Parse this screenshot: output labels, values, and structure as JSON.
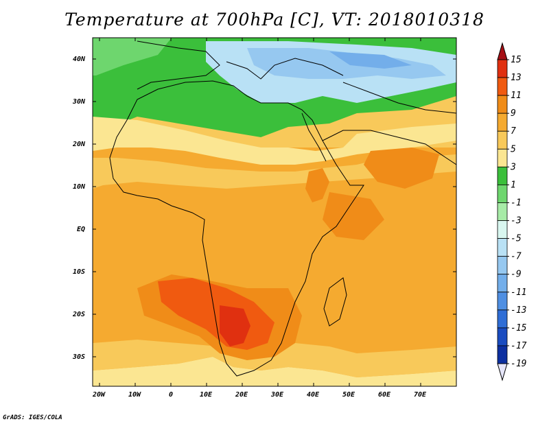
{
  "title": "Temperature at 700hPa [C], VT: 2018010318",
  "credit": "GrADS: IGES/COLA",
  "lat_labels": [
    "40N",
    "30N",
    "20N",
    "10N",
    "EQ",
    "10S",
    "20S",
    "30S"
  ],
  "lon_labels": [
    "20W",
    "10W",
    "0",
    "10E",
    "20E",
    "30E",
    "40E",
    "50E",
    "60E",
    "70E"
  ],
  "colorbar": {
    "levels": [
      "15",
      "13",
      "11",
      "9",
      "7",
      "5",
      "3",
      "1",
      "-1",
      "-3",
      "-5",
      "-7",
      "-9",
      "-11",
      "-13",
      "-15",
      "-17",
      "-19"
    ],
    "colors": [
      "#a50f15",
      "#e03010",
      "#f05a10",
      "#f08c18",
      "#f5aa30",
      "#f8c95a",
      "#fbe692",
      "#3bbf3b",
      "#6ed66e",
      "#a7eba7",
      "#d9f7f0",
      "#b9e1f5",
      "#96c8f0",
      "#73aeea",
      "#4f8fe2",
      "#2f6ed6",
      "#1a4cc0",
      "#0c2fa0",
      "#0a1878"
    ]
  },
  "regions": [
    {
      "name": "mediterranean-cold",
      "color": "#96c8f0"
    },
    {
      "name": "north-africa-green",
      "color": "#3bbf3b"
    },
    {
      "name": "sahara-pale",
      "color": "#fbe692"
    },
    {
      "name": "tropics-orange",
      "color": "#f5aa30"
    },
    {
      "name": "southern-africa-hot",
      "color": "#e03010"
    }
  ]
}
